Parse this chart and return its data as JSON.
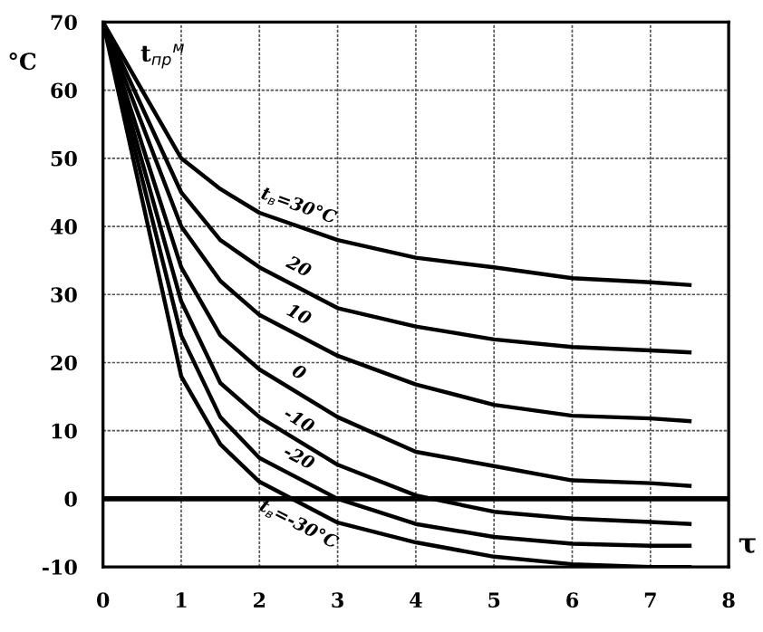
{
  "chart_data": {
    "type": "line",
    "ylabel": "°C",
    "xlabel": "τ",
    "annotations": [
      "t$_{пр}$$^{м}$"
    ],
    "x": [
      0,
      1,
      1.5,
      2,
      3,
      4,
      5,
      6,
      7,
      7.5
    ],
    "series": [
      {
        "name": "t$_{в}$=30°C",
        "color": "#000000",
        "values": [
          70,
          50,
          45.5,
          42,
          38,
          35.4,
          34,
          32.4,
          31.8,
          31.4
        ]
      },
      {
        "name": "20",
        "color": "#000000",
        "values": [
          70,
          45,
          38,
          34,
          28,
          25.3,
          23.4,
          22.3,
          21.8,
          21.5
        ]
      },
      {
        "name": "10",
        "color": "#000000",
        "values": [
          70,
          40,
          32,
          27,
          21,
          16.8,
          13.8,
          12.2,
          11.8,
          11.4
        ]
      },
      {
        "name": "0",
        "color": "#000000",
        "values": [
          70,
          34,
          24,
          19,
          12,
          6.9,
          4.8,
          2.7,
          2.3,
          1.9
        ]
      },
      {
        "name": "-10",
        "color": "#000000",
        "values": [
          70,
          29,
          17,
          12,
          5,
          0.5,
          -1.9,
          -2.9,
          -3.4,
          -3.7
        ]
      },
      {
        "name": "-20",
        "color": "#000000",
        "values": [
          70,
          24,
          12,
          6,
          0,
          -3.7,
          -5.6,
          -6.6,
          -6.9,
          -6.9
        ]
      },
      {
        "name": "t$_{в}$=-30°C",
        "color": "#000000",
        "values": [
          70,
          18,
          8,
          2.5,
          -3.5,
          -6.4,
          -8.5,
          -9.6,
          -10,
          -10
        ]
      }
    ],
    "xlim": [
      0,
      8
    ],
    "ylim": [
      -10,
      70
    ],
    "xticks": [
      0,
      1,
      2,
      3,
      4,
      5,
      6,
      7,
      8
    ],
    "yticks": [
      -10,
      0,
      10,
      20,
      30,
      40,
      50,
      60,
      70
    ],
    "ref_lines": [
      {
        "axis": "y",
        "value": 0,
        "color": "#000000"
      }
    ],
    "grid": true,
    "legend": false,
    "marker": "none",
    "line_style": "solid"
  }
}
